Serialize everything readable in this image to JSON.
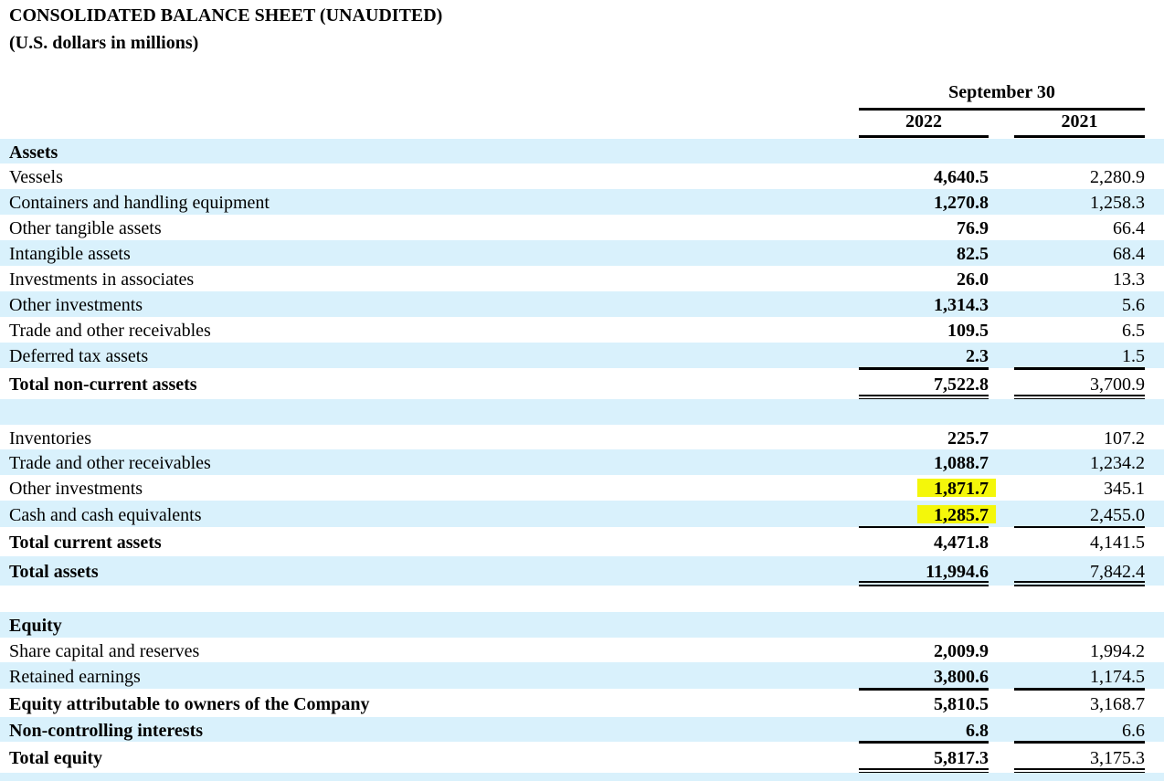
{
  "header": {
    "title": "CONSOLIDATED BALANCE SHEET (UNAUDITED)",
    "subtitle": "(U.S. dollars in millions)",
    "period": "September 30",
    "years": [
      2022,
      2021
    ]
  },
  "table": {
    "rows": [
      {
        "label": "Assets"
      },
      {
        "label": "Vessels",
        "values": [
          "4,640.5",
          "2,280.9"
        ]
      },
      {
        "label": "Containers and handling equipment",
        "values": [
          "1,270.8",
          "1,258.3"
        ]
      },
      {
        "label": "Other tangible assets",
        "values": [
          "76.9",
          "66.4"
        ]
      },
      {
        "label": "Intangible assets",
        "values": [
          "82.5",
          "68.4"
        ]
      },
      {
        "label": "Investments in associates",
        "values": [
          "26.0",
          "13.3"
        ]
      },
      {
        "label": "Other investments",
        "values": [
          "1,314.3",
          "5.6"
        ]
      },
      {
        "label": "Trade and other receivables",
        "values": [
          "109.5",
          "6.5"
        ]
      },
      {
        "label": "Deferred tax assets",
        "values": [
          "2.3",
          "1.5"
        ]
      },
      {
        "label": "Total non-current assets",
        "values": [
          "7,522.8",
          "3,700.9"
        ]
      },
      {
        "label": "Inventories",
        "values": [
          "225.7",
          "107.2"
        ]
      },
      {
        "label": "Trade and other receivables",
        "values": [
          "1,088.7",
          "1,234.2"
        ]
      },
      {
        "label": "Other investments",
        "values": [
          "1,871.7",
          "345.1"
        ]
      },
      {
        "label": "Cash and cash equivalents",
        "values": [
          "1,285.7",
          "2,455.0"
        ]
      },
      {
        "label": "Total current assets",
        "values": [
          "4,471.8",
          "4,141.5"
        ]
      },
      {
        "label": "Total assets",
        "values": [
          "11,994.6",
          "7,842.4"
        ]
      },
      {
        "label": "Equity"
      },
      {
        "label": "Share capital and reserves",
        "values": [
          "2,009.9",
          "1,994.2"
        ]
      },
      {
        "label": "Retained earnings",
        "values": [
          "3,800.6",
          "1,174.5"
        ]
      },
      {
        "label": "Equity attributable to owners of the Company",
        "values": [
          "5,810.5",
          "3,168.7"
        ]
      },
      {
        "label": "Non-controlling interests",
        "values": [
          "6.8",
          "6.6"
        ]
      },
      {
        "label": "Total equity",
        "values": [
          "5,817.3",
          "3,175.3"
        ]
      }
    ]
  }
}
